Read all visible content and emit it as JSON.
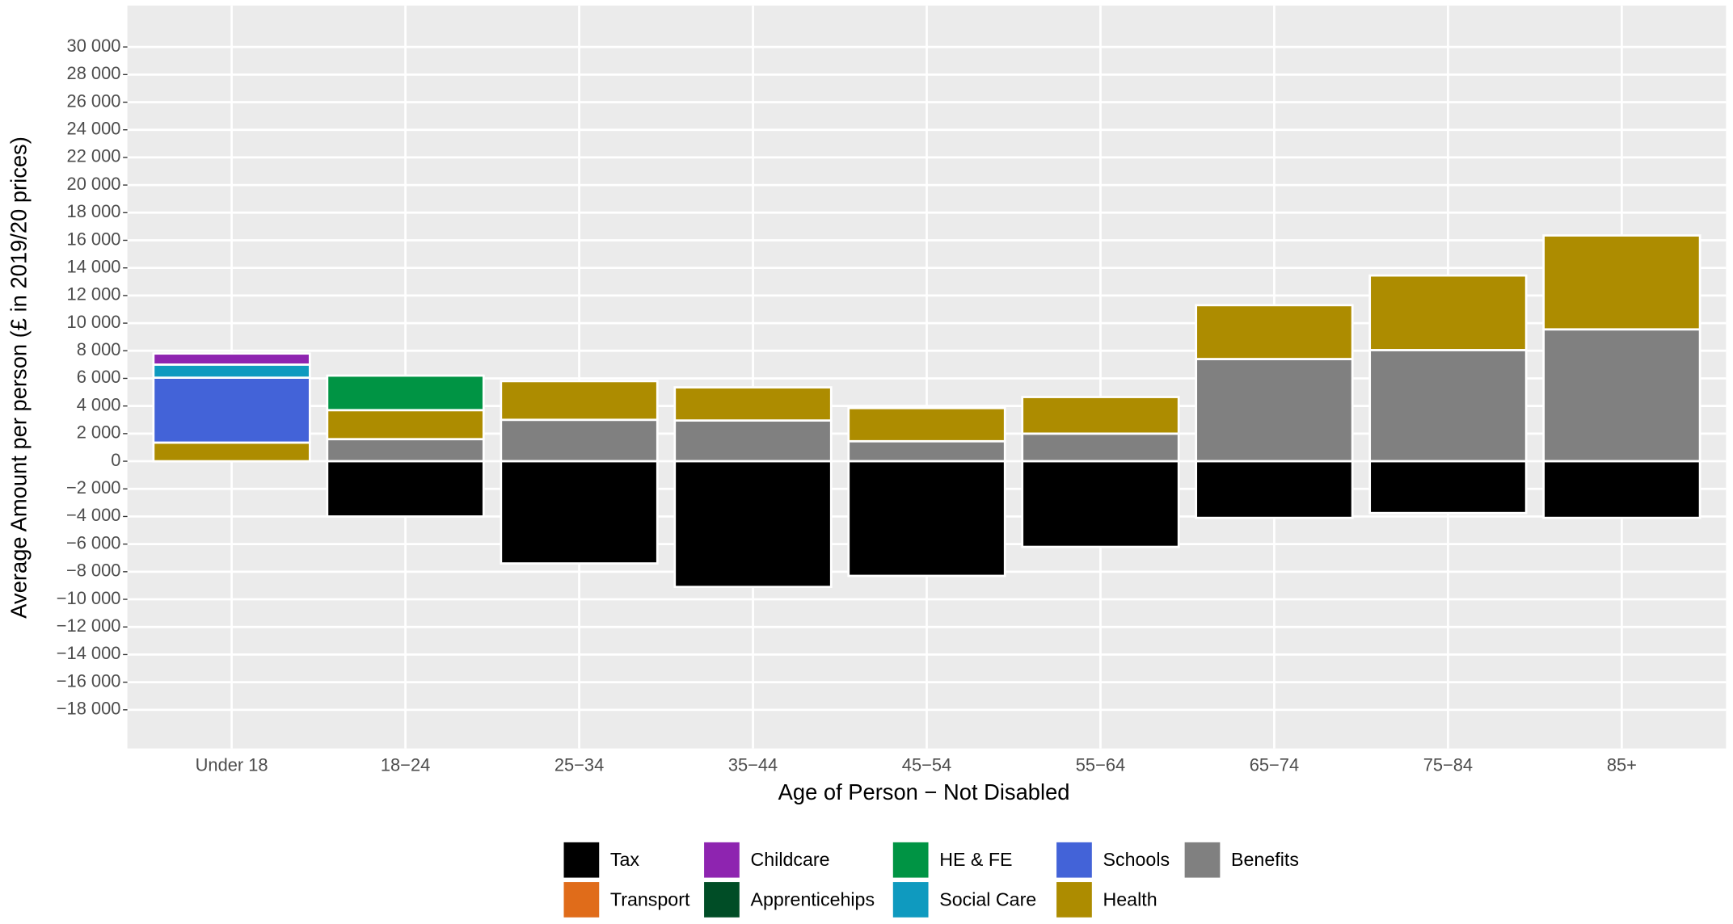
{
  "chart_data": {
    "type": "stacked_bar",
    "x_label": "Age of Person − Not Disabled",
    "y_label": "Average Amount per person (£ in 2019/20 prices)",
    "categories": [
      "Under 18",
      "18−24",
      "25−34",
      "35−44",
      "45−54",
      "55−64",
      "65−74",
      "75−84",
      "85+"
    ],
    "series": [
      {
        "name": "Tax",
        "color": "#000000",
        "values": [
          0,
          -4000,
          -7400,
          -9100,
          -8300,
          -6200,
          -4100,
          -3750,
          -4100
        ]
      },
      {
        "name": "Transport",
        "color": "#e06c1a",
        "values": [
          0,
          0,
          0,
          0,
          0,
          0,
          0,
          0,
          0
        ]
      },
      {
        "name": "Childcare",
        "color": "#8e24b0",
        "values": [
          800,
          0,
          0,
          0,
          0,
          0,
          0,
          0,
          0
        ]
      },
      {
        "name": "Apprenticehips",
        "color": "#004d26",
        "values": [
          0,
          0,
          0,
          0,
          0,
          0,
          0,
          0,
          0
        ]
      },
      {
        "name": "HE & FE",
        "color": "#009444",
        "values": [
          0,
          2500,
          0,
          0,
          0,
          0,
          0,
          0,
          0
        ]
      },
      {
        "name": "Social Care",
        "color": "#0f9abf",
        "values": [
          950,
          0,
          0,
          0,
          0,
          0,
          0,
          0,
          0
        ]
      },
      {
        "name": "Schools",
        "color": "#4363d8",
        "values": [
          4700,
          0,
          0,
          0,
          0,
          0,
          0,
          0,
          0
        ]
      },
      {
        "name": "Health",
        "color": "#ad8c00",
        "values": [
          1350,
          2100,
          2800,
          2400,
          2400,
          2650,
          3900,
          5400,
          6800
        ]
      },
      {
        "name": "Benefits",
        "color": "#808080",
        "values": [
          0,
          1600,
          3000,
          2950,
          1450,
          2000,
          7400,
          8050,
          9550
        ]
      }
    ],
    "ylim": [
      -20800,
      33000
    ],
    "yticks": [
      {
        "value": -18000,
        "label": "−18 000"
      },
      {
        "value": -16000,
        "label": "−16 000"
      },
      {
        "value": -14000,
        "label": "−14 000"
      },
      {
        "value": -12000,
        "label": "−12 000"
      },
      {
        "value": -10000,
        "label": "−10 000"
      },
      {
        "value": -8000,
        "label": "−8 000"
      },
      {
        "value": -6000,
        "label": "−6 000"
      },
      {
        "value": -4000,
        "label": "−4 000"
      },
      {
        "value": -2000,
        "label": "−2 000"
      },
      0,
      {
        "value": 2000,
        "label": "2 000"
      },
      {
        "value": 4000,
        "label": "4 000"
      },
      {
        "value": 6000,
        "label": "6 000"
      },
      {
        "value": 8000,
        "label": "8 000"
      },
      {
        "value": 10000,
        "label": "10 000"
      },
      {
        "value": 12000,
        "label": "12 000"
      },
      {
        "value": 14000,
        "label": "14 000"
      },
      {
        "value": 16000,
        "label": "16 000"
      },
      {
        "value": 18000,
        "label": "18 000"
      },
      {
        "value": 20000,
        "label": "20 000"
      },
      {
        "value": 22000,
        "label": "22 000"
      },
      {
        "value": 24000,
        "label": "24 000"
      },
      {
        "value": 26000,
        "label": "26 000"
      },
      {
        "value": 28000,
        "label": "28 000"
      },
      {
        "value": 30000,
        "label": "30 000"
      }
    ],
    "grid": true,
    "legend": "bottom"
  }
}
